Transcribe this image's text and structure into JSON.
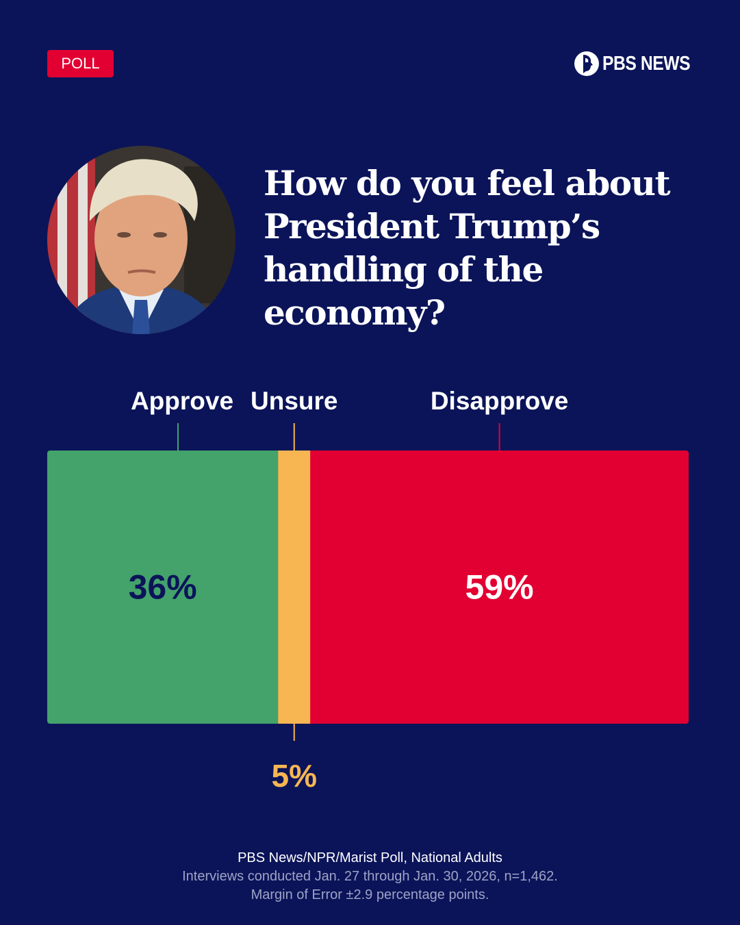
{
  "badge": "POLL",
  "logo": "PBS NEWS",
  "question": "How do you feel about President Trump’s handling of the economy?",
  "chart_data": {
    "type": "bar",
    "orientation": "horizontal-stacked",
    "categories": [
      "Approve",
      "Unsure",
      "Disapprove"
    ],
    "values": [
      36,
      5,
      59
    ],
    "value_labels": [
      "36%",
      "5%",
      "59%"
    ],
    "colors": [
      "#43a36b",
      "#f7b652",
      "#e20032"
    ],
    "label_colors": [
      "#0b1459",
      "#f7b652",
      "#ffffff"
    ],
    "xlim": [
      0,
      100
    ]
  },
  "footer": {
    "source": "PBS News/NPR/Marist Poll, National Adults",
    "interviews": "Interviews conducted Jan. 27 through Jan. 30, 2026, n=1,462.",
    "margin": "Margin of Error ±2.9 percentage points."
  },
  "colors": {
    "background": "#0b1459",
    "accent": "#e20032"
  }
}
